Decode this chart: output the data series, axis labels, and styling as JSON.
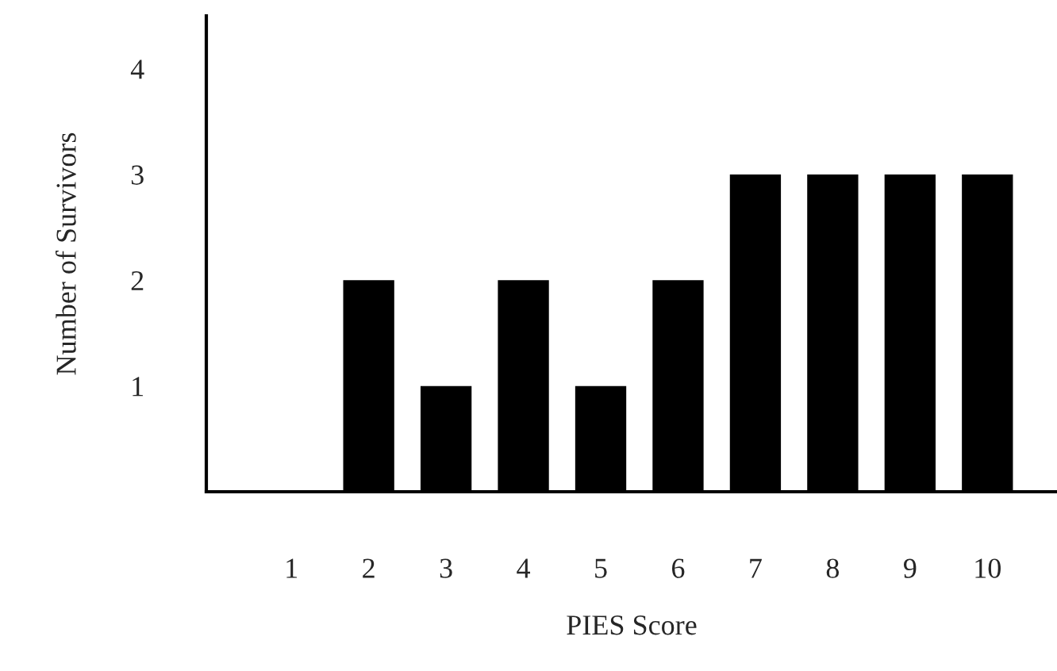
{
  "chart_data": {
    "type": "bar",
    "xlabel": "PIES Score",
    "ylabel": "Number of Survivors",
    "categories": [
      "1",
      "2",
      "3",
      "4",
      "5",
      "6",
      "7",
      "8",
      "9",
      "10"
    ],
    "values": [
      0,
      2,
      1,
      2,
      1,
      2,
      3,
      3,
      3,
      3
    ],
    "color": "#000000",
    "ylim": [
      0,
      4.5
    ],
    "yticks": [
      1,
      2,
      3,
      4
    ],
    "grid": false,
    "legend": false
  }
}
